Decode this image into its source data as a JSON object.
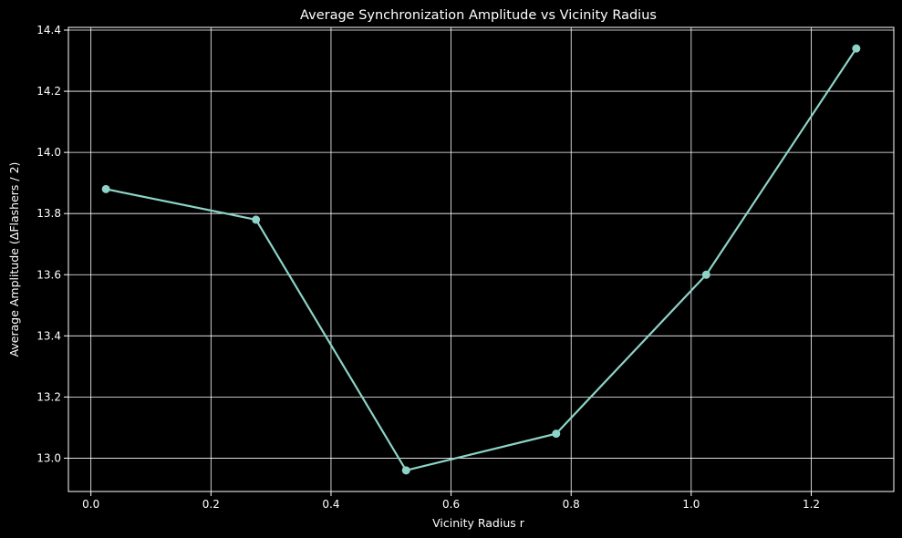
{
  "chart_data": {
    "type": "line",
    "title": "Average Synchronization Amplitude vs Vicinity Radius",
    "xlabel": "Vicinity Radius r",
    "ylabel": "Average Amplitude (ΔFlashers / 2)",
    "xlim": [
      -0.0375,
      1.3375
    ],
    "ylim": [
      12.891,
      14.409
    ],
    "xticks": [
      0.0,
      0.2,
      0.4,
      0.6,
      0.8,
      1.0,
      1.2
    ],
    "yticks": [
      13.0,
      13.2,
      13.4,
      13.6,
      13.8,
      14.0,
      14.2,
      14.4
    ],
    "xtick_labels": [
      "0.0",
      "0.2",
      "0.4",
      "0.6",
      "0.8",
      "1.0",
      "1.2"
    ],
    "ytick_labels": [
      "13.0",
      "13.2",
      "13.4",
      "13.6",
      "13.8",
      "14.0",
      "14.2",
      "14.4"
    ],
    "grid": true,
    "series": [
      {
        "x": [
          0.025,
          0.275,
          0.525,
          0.775,
          1.025,
          1.275
        ],
        "values": [
          13.88,
          13.78,
          12.96,
          13.08,
          13.6,
          14.34
        ],
        "color": "#8dd3c7",
        "marker": "circle"
      }
    ]
  },
  "colors": {
    "background": "#000000",
    "axis": "#ffffff",
    "grid": "#ffffff",
    "line": "#8dd3c7"
  }
}
